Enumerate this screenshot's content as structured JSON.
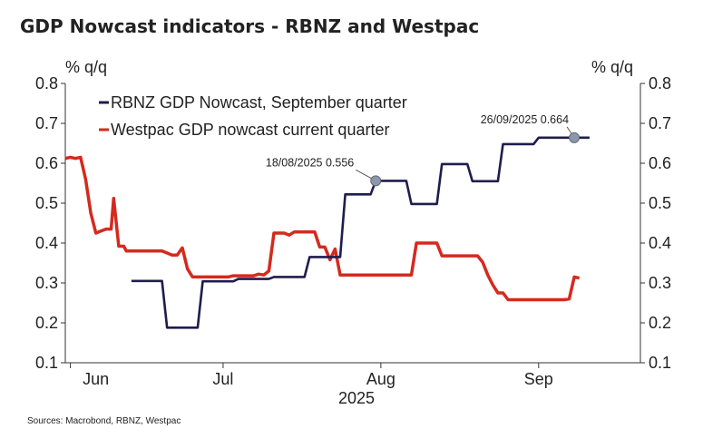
{
  "chart_data": {
    "type": "line",
    "title": "GDP Nowcast indicators - RBNZ and Westpac",
    "ylabel_left": "% q/q",
    "ylabel_right": "% q/q",
    "year_label": "2025",
    "source": "Sources: Macrobond, RBNZ, Westpac",
    "ylim": [
      0.1,
      0.8
    ],
    "yticks": [
      "0.8",
      "0.7",
      "0.6",
      "0.5",
      "0.4",
      "0.3",
      "0.2",
      "0.1"
    ],
    "x_domain": [
      151,
      264
    ],
    "xticks": [
      {
        "label": "Jun",
        "at": 157
      },
      {
        "label": "Jul",
        "at": 182
      },
      {
        "label": "Aug",
        "at": 213
      },
      {
        "label": "Sep",
        "at": 244
      }
    ],
    "month_starts": [
      152,
      182,
      213,
      244
    ],
    "series": [
      {
        "name": "RBNZ GDP Nowcast, September quarter",
        "color": "#1f1d4d",
        "points": [
          [
            164,
            0.305
          ],
          [
            170,
            0.305
          ],
          [
            171,
            0.188
          ],
          [
            177,
            0.188
          ],
          [
            178,
            0.304
          ],
          [
            184,
            0.304
          ],
          [
            185,
            0.31
          ],
          [
            191,
            0.31
          ],
          [
            192,
            0.315
          ],
          [
            198,
            0.315
          ],
          [
            199,
            0.365
          ],
          [
            205,
            0.365
          ],
          [
            206,
            0.522
          ],
          [
            211,
            0.522
          ],
          [
            212,
            0.556
          ],
          [
            213,
            0.556
          ],
          [
            218,
            0.556
          ],
          [
            219,
            0.498
          ],
          [
            224,
            0.498
          ],
          [
            225,
            0.598
          ],
          [
            230,
            0.598
          ],
          [
            231,
            0.555
          ],
          [
            236,
            0.555
          ],
          [
            237,
            0.648
          ],
          [
            243,
            0.648
          ],
          [
            244,
            0.664
          ],
          [
            254,
            0.664
          ]
        ]
      },
      {
        "name": "Westpac GDP nowcast current quarter",
        "color": "#d42a1e",
        "points": [
          [
            151,
            0.612
          ],
          [
            152,
            0.615
          ],
          [
            153,
            0.612
          ],
          [
            154,
            0.615
          ],
          [
            155,
            0.56
          ],
          [
            156,
            0.475
          ],
          [
            157,
            0.425
          ],
          [
            158,
            0.43
          ],
          [
            159,
            0.435
          ],
          [
            160,
            0.435
          ],
          [
            160.5,
            0.512
          ],
          [
            161.5,
            0.392
          ],
          [
            162.5,
            0.392
          ],
          [
            163,
            0.38
          ],
          [
            166,
            0.38
          ],
          [
            170,
            0.38
          ],
          [
            172,
            0.37
          ],
          [
            173,
            0.37
          ],
          [
            174,
            0.388
          ],
          [
            175,
            0.335
          ],
          [
            176,
            0.315
          ],
          [
            183,
            0.315
          ],
          [
            184,
            0.318
          ],
          [
            188,
            0.318
          ],
          [
            189,
            0.322
          ],
          [
            190,
            0.32
          ],
          [
            191,
            0.33
          ],
          [
            192,
            0.425
          ],
          [
            193,
            0.425
          ],
          [
            194,
            0.425
          ],
          [
            195,
            0.42
          ],
          [
            196,
            0.428
          ],
          [
            200,
            0.428
          ],
          [
            201,
            0.39
          ],
          [
            202,
            0.39
          ],
          [
            203,
            0.358
          ],
          [
            204,
            0.385
          ],
          [
            205,
            0.32
          ],
          [
            218,
            0.32
          ],
          [
            219,
            0.32
          ],
          [
            220,
            0.4
          ],
          [
            221,
            0.4
          ],
          [
            224,
            0.4
          ],
          [
            225,
            0.368
          ],
          [
            231,
            0.368
          ],
          [
            232,
            0.368
          ],
          [
            233,
            0.352
          ],
          [
            234,
            0.32
          ],
          [
            235,
            0.295
          ],
          [
            236,
            0.275
          ],
          [
            237,
            0.275
          ],
          [
            238,
            0.258
          ],
          [
            239,
            0.258
          ],
          [
            249,
            0.258
          ],
          [
            250,
            0.26
          ],
          [
            251,
            0.315
          ],
          [
            252,
            0.312
          ]
        ]
      }
    ],
    "annotations": [
      {
        "text": "18/08/2025 0.556",
        "x": 212,
        "y": 0.556
      },
      {
        "text": "26/09/2025 0.664",
        "x": 251,
        "y": 0.664
      }
    ],
    "legend_position": "top-left",
    "grid": false
  }
}
